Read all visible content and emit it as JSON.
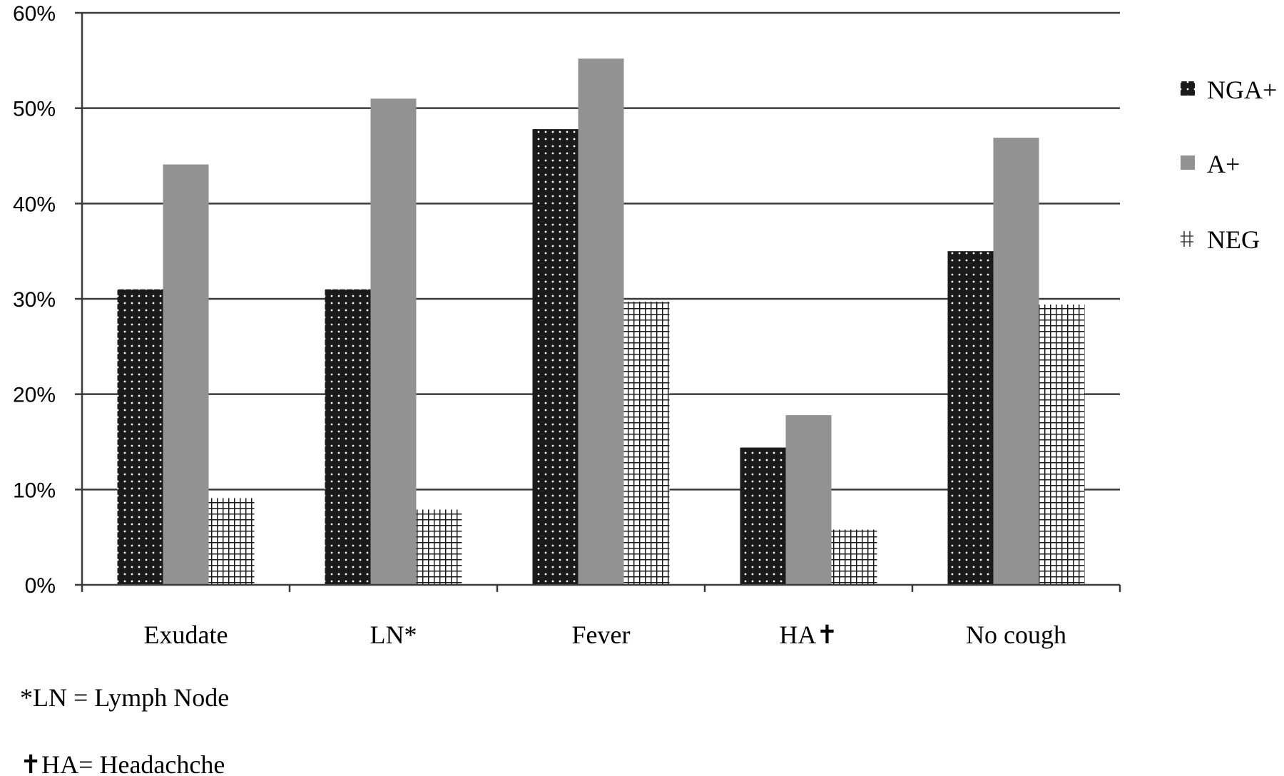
{
  "chart_data": {
    "type": "bar",
    "categories": [
      "Exudate",
      "LN*",
      "Fever",
      "HA✝",
      "No cough"
    ],
    "series": [
      {
        "name": "NGA+",
        "values": [
          31,
          31,
          47.8,
          14.4,
          35
        ],
        "color": "#1a1a1a",
        "pattern": "dots"
      },
      {
        "name": "A+",
        "values": [
          44.1,
          51,
          55.2,
          17.8,
          46.9
        ],
        "color": "#929292",
        "pattern": "solid"
      },
      {
        "name": "NEG",
        "values": [
          9.1,
          7.9,
          29.7,
          5.8,
          29.4
        ],
        "color": "#ffffff",
        "pattern": "grid"
      }
    ],
    "y_ticks": [
      "0%",
      "10%",
      "20%",
      "30%",
      "40%",
      "50%",
      "60%"
    ],
    "ylim": [
      0,
      60
    ],
    "y_unit": "%",
    "grid": true,
    "legend_position": "right",
    "title": "",
    "xlabel": "",
    "ylabel": ""
  },
  "footnotes": [
    "*LN = Lymph Node",
    "✝HA= Headachche"
  ]
}
